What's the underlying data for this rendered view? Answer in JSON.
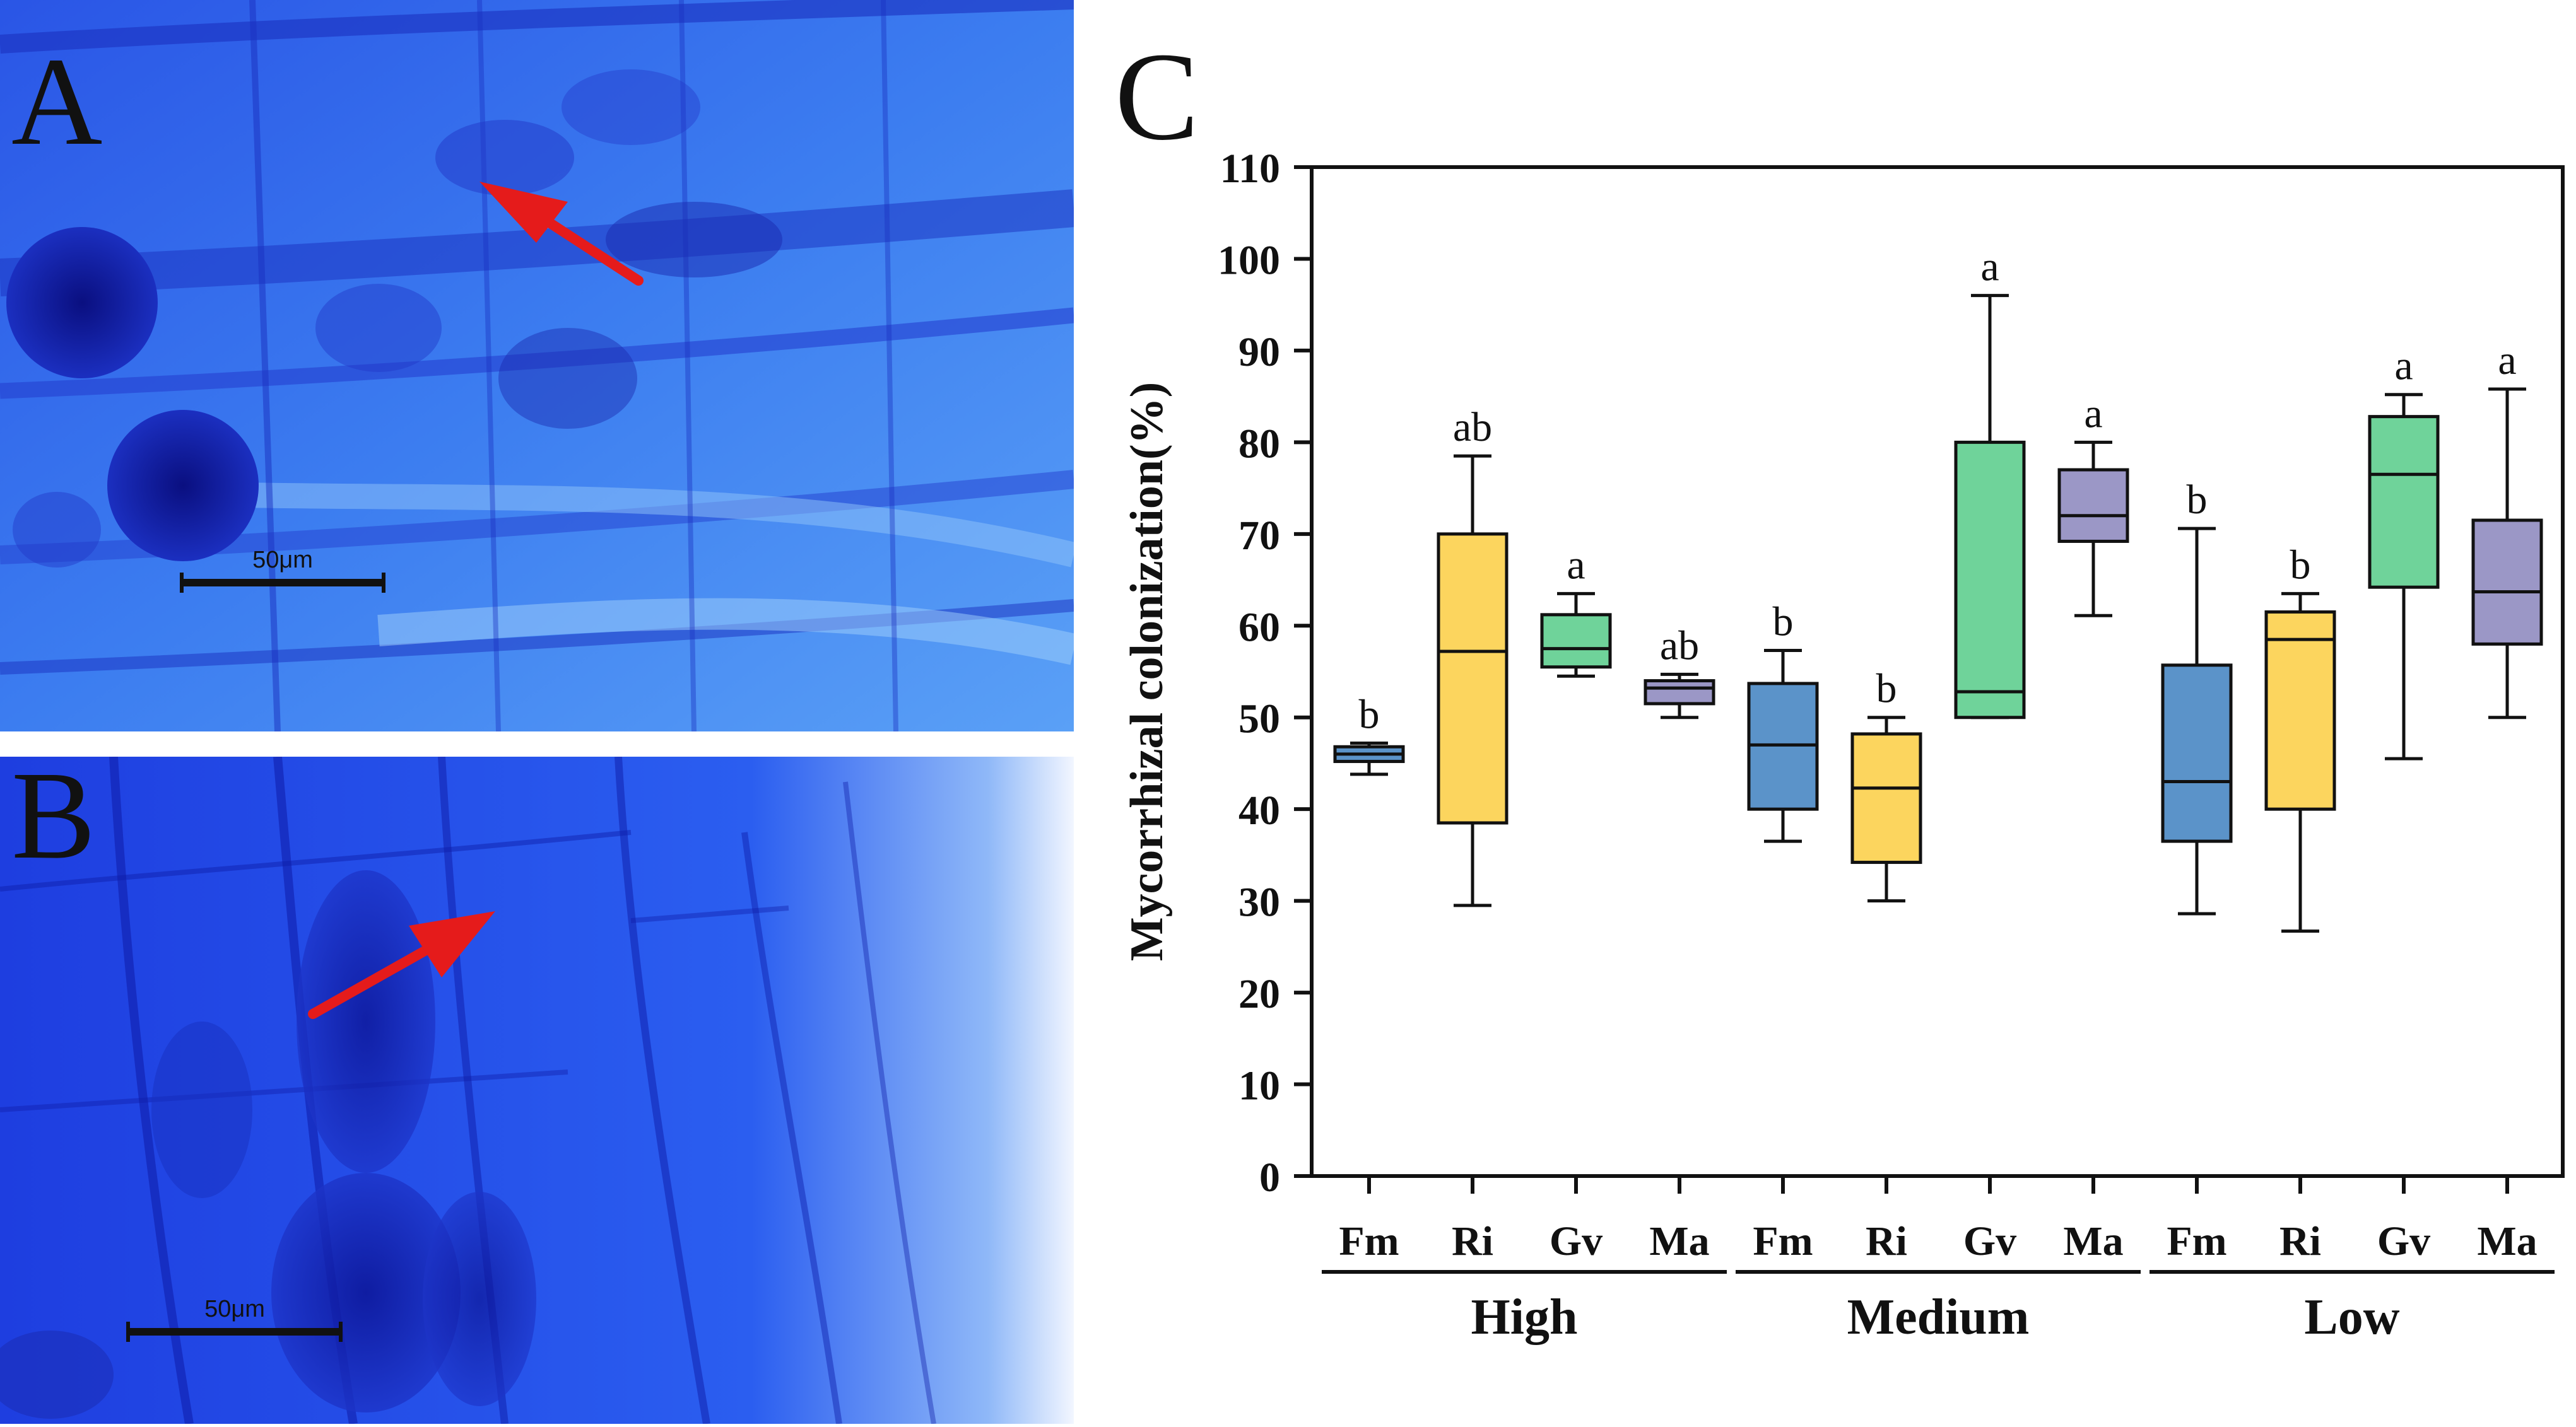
{
  "panels": {
    "a": {
      "letter": "A",
      "scale_bar_label": "50μm"
    },
    "b": {
      "letter": "B",
      "scale_bar_label": "50μm"
    },
    "c": {
      "letter": "C"
    }
  },
  "colors": {
    "stain_dark": "#0d16a0",
    "stain_mid": "#1e46e8",
    "stain_light": "#4a8cf0",
    "arrow": "#e51b1b",
    "Fm": "#5b93c9",
    "Ri": "#fcd55e",
    "Gv": "#6fd39a",
    "Ma": "#9b97c6"
  },
  "chart_data": {
    "type": "box",
    "title": "",
    "xlabel": "",
    "ylabel": "Mycorrhizal colonization(%)",
    "ylim": [
      0,
      110
    ],
    "yticks": [
      0,
      10,
      20,
      30,
      40,
      50,
      60,
      70,
      80,
      90,
      100,
      110
    ],
    "groups": [
      "High",
      "Medium",
      "Low"
    ],
    "categories": [
      "Fm",
      "Ri",
      "Gv",
      "Ma"
    ],
    "boxes": [
      {
        "group": "High",
        "category": "Fm",
        "min": 43.8,
        "q1": 45.2,
        "median": 46.0,
        "q3": 46.8,
        "max": 47.2,
        "sig": "b"
      },
      {
        "group": "High",
        "category": "Ri",
        "min": 29.5,
        "q1": 38.5,
        "median": 57.2,
        "q3": 70.0,
        "max": 78.5,
        "sig": "ab"
      },
      {
        "group": "High",
        "category": "Gv",
        "min": 54.5,
        "q1": 55.5,
        "median": 57.5,
        "q3": 61.2,
        "max": 63.5,
        "sig": "a"
      },
      {
        "group": "High",
        "category": "Ma",
        "min": 50.0,
        "q1": 51.5,
        "median": 53.2,
        "q3": 54.0,
        "max": 54.7,
        "sig": "ab"
      },
      {
        "group": "Medium",
        "category": "Fm",
        "min": 36.5,
        "q1": 40.0,
        "median": 47.0,
        "q3": 53.7,
        "max": 57.3,
        "sig": "b"
      },
      {
        "group": "Medium",
        "category": "Ri",
        "min": 30.0,
        "q1": 34.2,
        "median": 42.3,
        "q3": 48.2,
        "max": 50.0,
        "sig": "b"
      },
      {
        "group": "Medium",
        "category": "Gv",
        "min": 50.0,
        "q1": 50.0,
        "median": 52.8,
        "q3": 80.0,
        "max": 96.0,
        "sig": "a"
      },
      {
        "group": "Medium",
        "category": "Ma",
        "min": 61.1,
        "q1": 69.2,
        "median": 72.0,
        "q3": 77.0,
        "max": 80.0,
        "sig": "a"
      },
      {
        "group": "Low",
        "category": "Fm",
        "min": 28.6,
        "q1": 36.5,
        "median": 43.0,
        "q3": 55.7,
        "max": 70.6,
        "sig": "b"
      },
      {
        "group": "Low",
        "category": "Ri",
        "min": 26.7,
        "q1": 40.0,
        "median": 58.5,
        "q3": 61.5,
        "max": 63.5,
        "sig": "b"
      },
      {
        "group": "Low",
        "category": "Gv",
        "min": 45.5,
        "q1": 64.2,
        "median": 76.5,
        "q3": 82.8,
        "max": 85.2,
        "sig": "a"
      },
      {
        "group": "Low",
        "category": "Ma",
        "min": 50.0,
        "q1": 58.0,
        "median": 63.7,
        "q3": 71.5,
        "max": 85.8,
        "sig": "a"
      }
    ]
  }
}
